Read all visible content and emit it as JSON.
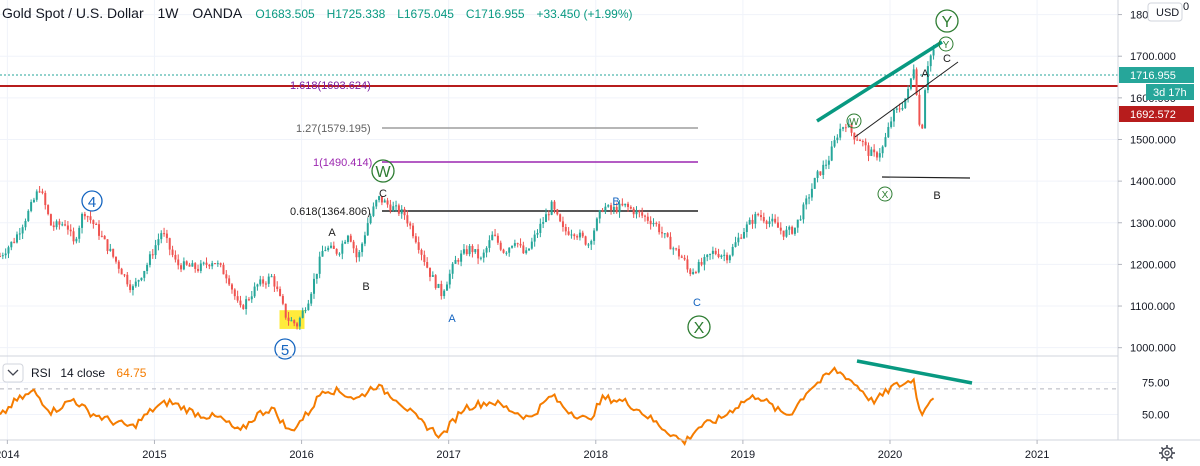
{
  "header": {
    "symbol": "Gold Spot / U.S. Dollar",
    "interval": "1W",
    "exchange": "OANDA",
    "open": "O1683.505",
    "high": "H1725.338",
    "low": "L1675.045",
    "close": "C1716.955",
    "change": "+33.450 (+1.99%)"
  },
  "currency_button": "USD",
  "axis_zero_label": "0",
  "rsi": {
    "name": "RSI",
    "params": "14 close",
    "value": "64.75"
  },
  "price_labels": {
    "last": "1716.955",
    "countdown": "3d 17h",
    "red_level": "1692.572"
  },
  "colors": {
    "up": "#26a69a",
    "down": "#ef5350",
    "rsi": "#f57c00",
    "teal_line": "#089981",
    "red_line": "#b71c1c",
    "purple": "#9c27b0",
    "grey_fib": "#9e9e9e",
    "wave_circle": "#2e7d32",
    "wave_blue": "#1565c0",
    "highlight": "#ffeb3b"
  },
  "chart_data": [
    {
      "type": "candlestick",
      "title": "Gold Spot / U.S. Dollar, 1W, OANDA",
      "x_ticks": [
        "2014",
        "2015",
        "2016",
        "2017",
        "2018",
        "2019",
        "2020",
        "2021"
      ],
      "y_ticks": [
        1000,
        1100,
        1200,
        1300,
        1400,
        1500,
        1600,
        1700,
        1800
      ],
      "ylim": [
        980,
        1835
      ],
      "grid": true,
      "close_path": [
        {
          "x": 2013.95,
          "y": 1220
        },
        {
          "x": 2014.05,
          "y": 1260
        },
        {
          "x": 2014.15,
          "y": 1330
        },
        {
          "x": 2014.22,
          "y": 1385
        },
        {
          "x": 2014.3,
          "y": 1290
        },
        {
          "x": 2014.4,
          "y": 1300
        },
        {
          "x": 2014.45,
          "y": 1250
        },
        {
          "x": 2014.52,
          "y": 1330
        },
        {
          "x": 2014.6,
          "y": 1290
        },
        {
          "x": 2014.7,
          "y": 1230
        },
        {
          "x": 2014.85,
          "y": 1140
        },
        {
          "x": 2014.95,
          "y": 1200
        },
        {
          "x": 2015.05,
          "y": 1280
        },
        {
          "x": 2015.15,
          "y": 1200
        },
        {
          "x": 2015.3,
          "y": 1190
        },
        {
          "x": 2015.4,
          "y": 1210
        },
        {
          "x": 2015.5,
          "y": 1170
        },
        {
          "x": 2015.58,
          "y": 1090
        },
        {
          "x": 2015.7,
          "y": 1150
        },
        {
          "x": 2015.8,
          "y": 1170
        },
        {
          "x": 2015.9,
          "y": 1070
        },
        {
          "x": 2015.97,
          "y": 1055
        },
        {
          "x": 2016.05,
          "y": 1120
        },
        {
          "x": 2016.15,
          "y": 1240
        },
        {
          "x": 2016.25,
          "y": 1230
        },
        {
          "x": 2016.32,
          "y": 1280
        },
        {
          "x": 2016.38,
          "y": 1210
        },
        {
          "x": 2016.45,
          "y": 1300
        },
        {
          "x": 2016.52,
          "y": 1360
        },
        {
          "x": 2016.6,
          "y": 1340
        },
        {
          "x": 2016.7,
          "y": 1320
        },
        {
          "x": 2016.78,
          "y": 1260
        },
        {
          "x": 2016.87,
          "y": 1180
        },
        {
          "x": 2016.95,
          "y": 1130
        },
        {
          "x": 2017.05,
          "y": 1210
        },
        {
          "x": 2017.15,
          "y": 1240
        },
        {
          "x": 2017.22,
          "y": 1210
        },
        {
          "x": 2017.3,
          "y": 1270
        },
        {
          "x": 2017.38,
          "y": 1230
        },
        {
          "x": 2017.45,
          "y": 1260
        },
        {
          "x": 2017.52,
          "y": 1220
        },
        {
          "x": 2017.62,
          "y": 1290
        },
        {
          "x": 2017.7,
          "y": 1340
        },
        {
          "x": 2017.78,
          "y": 1280
        },
        {
          "x": 2017.85,
          "y": 1280
        },
        {
          "x": 2017.95,
          "y": 1250
        },
        {
          "x": 2018.05,
          "y": 1340
        },
        {
          "x": 2018.1,
          "y": 1330
        },
        {
          "x": 2018.2,
          "y": 1340
        },
        {
          "x": 2018.3,
          "y": 1320
        },
        {
          "x": 2018.4,
          "y": 1300
        },
        {
          "x": 2018.5,
          "y": 1250
        },
        {
          "x": 2018.6,
          "y": 1210
        },
        {
          "x": 2018.63,
          "y": 1180
        },
        {
          "x": 2018.72,
          "y": 1200
        },
        {
          "x": 2018.8,
          "y": 1230
        },
        {
          "x": 2018.9,
          "y": 1220
        },
        {
          "x": 2019.0,
          "y": 1280
        },
        {
          "x": 2019.1,
          "y": 1320
        },
        {
          "x": 2019.2,
          "y": 1300
        },
        {
          "x": 2019.28,
          "y": 1275
        },
        {
          "x": 2019.35,
          "y": 1285
        },
        {
          "x": 2019.42,
          "y": 1340
        },
        {
          "x": 2019.5,
          "y": 1410
        },
        {
          "x": 2019.58,
          "y": 1450
        },
        {
          "x": 2019.65,
          "y": 1520
        },
        {
          "x": 2019.7,
          "y": 1540
        },
        {
          "x": 2019.75,
          "y": 1510
        },
        {
          "x": 2019.8,
          "y": 1500
        },
        {
          "x": 2019.85,
          "y": 1470
        },
        {
          "x": 2019.9,
          "y": 1460
        },
        {
          "x": 2019.95,
          "y": 1480
        },
        {
          "x": 2020.02,
          "y": 1560
        },
        {
          "x": 2020.08,
          "y": 1580
        },
        {
          "x": 2020.13,
          "y": 1620
        },
        {
          "x": 2020.16,
          "y": 1680
        },
        {
          "x": 2020.19,
          "y": 1590
        },
        {
          "x": 2020.21,
          "y": 1480
        },
        {
          "x": 2020.23,
          "y": 1600
        },
        {
          "x": 2020.26,
          "y": 1690
        },
        {
          "x": 2020.3,
          "y": 1717
        }
      ],
      "highlight_zone": {
        "x": [
          2015.85,
          2016.02
        ],
        "y": [
          1045,
          1090
        ]
      }
    },
    {
      "type": "line",
      "title": "RSI 14 close",
      "y_ticks": [
        50,
        75
      ],
      "ylim": [
        30,
        95
      ],
      "dashed_levels": [
        70,
        30
      ],
      "rsi_path": [
        {
          "x": 2013.95,
          "y": 48
        },
        {
          "x": 2014.05,
          "y": 60
        },
        {
          "x": 2014.18,
          "y": 68
        },
        {
          "x": 2014.3,
          "y": 52
        },
        {
          "x": 2014.45,
          "y": 62
        },
        {
          "x": 2014.55,
          "y": 52
        },
        {
          "x": 2014.7,
          "y": 45
        },
        {
          "x": 2014.85,
          "y": 40
        },
        {
          "x": 2015.0,
          "y": 55
        },
        {
          "x": 2015.1,
          "y": 60
        },
        {
          "x": 2015.3,
          "y": 50
        },
        {
          "x": 2015.45,
          "y": 47
        },
        {
          "x": 2015.58,
          "y": 36
        },
        {
          "x": 2015.7,
          "y": 50
        },
        {
          "x": 2015.8,
          "y": 55
        },
        {
          "x": 2015.92,
          "y": 36
        },
        {
          "x": 2016.05,
          "y": 52
        },
        {
          "x": 2016.15,
          "y": 70
        },
        {
          "x": 2016.25,
          "y": 68
        },
        {
          "x": 2016.38,
          "y": 62
        },
        {
          "x": 2016.5,
          "y": 73
        },
        {
          "x": 2016.65,
          "y": 62
        },
        {
          "x": 2016.8,
          "y": 45
        },
        {
          "x": 2016.95,
          "y": 33
        },
        {
          "x": 2017.1,
          "y": 55
        },
        {
          "x": 2017.2,
          "y": 58
        },
        {
          "x": 2017.3,
          "y": 60
        },
        {
          "x": 2017.45,
          "y": 52
        },
        {
          "x": 2017.55,
          "y": 47
        },
        {
          "x": 2017.7,
          "y": 65
        },
        {
          "x": 2017.8,
          "y": 54
        },
        {
          "x": 2017.95,
          "y": 45
        },
        {
          "x": 2018.05,
          "y": 63
        },
        {
          "x": 2018.2,
          "y": 60
        },
        {
          "x": 2018.3,
          "y": 53
        },
        {
          "x": 2018.45,
          "y": 40
        },
        {
          "x": 2018.6,
          "y": 28
        },
        {
          "x": 2018.7,
          "y": 40
        },
        {
          "x": 2018.85,
          "y": 47
        },
        {
          "x": 2019.0,
          "y": 60
        },
        {
          "x": 2019.1,
          "y": 65
        },
        {
          "x": 2019.25,
          "y": 52
        },
        {
          "x": 2019.32,
          "y": 50
        },
        {
          "x": 2019.45,
          "y": 70
        },
        {
          "x": 2019.55,
          "y": 78
        },
        {
          "x": 2019.62,
          "y": 85
        },
        {
          "x": 2019.7,
          "y": 80
        },
        {
          "x": 2019.8,
          "y": 70
        },
        {
          "x": 2019.88,
          "y": 60
        },
        {
          "x": 2019.95,
          "y": 65
        },
        {
          "x": 2020.02,
          "y": 72
        },
        {
          "x": 2020.1,
          "y": 74
        },
        {
          "x": 2020.16,
          "y": 78
        },
        {
          "x": 2020.19,
          "y": 60
        },
        {
          "x": 2020.21,
          "y": 47
        },
        {
          "x": 2020.23,
          "y": 55
        },
        {
          "x": 2020.26,
          "y": 60
        },
        {
          "x": 2020.3,
          "y": 64.75
        }
      ]
    }
  ],
  "fib_levels": [
    {
      "label": "1.618(1693.624)",
      "price": 1693.624
    },
    {
      "label": "1.27(1579.195)",
      "price": 1579.195
    },
    {
      "label": "1(1490.414)",
      "price": 1490.414
    },
    {
      "label": "0.618(1364.806)",
      "price": 1364.806
    }
  ],
  "wave_labels": {
    "w4": "4",
    "w5": "5",
    "W": "W",
    "X": "X",
    "Y": "Y",
    "w_small": "W",
    "x_small": "X",
    "y_small": "Y",
    "A1": "A",
    "B1": "B",
    "C1": "C",
    "A2": "A",
    "B2": "B",
    "C2": "C",
    "A3": "A",
    "B3": "B",
    "C3": "C"
  }
}
